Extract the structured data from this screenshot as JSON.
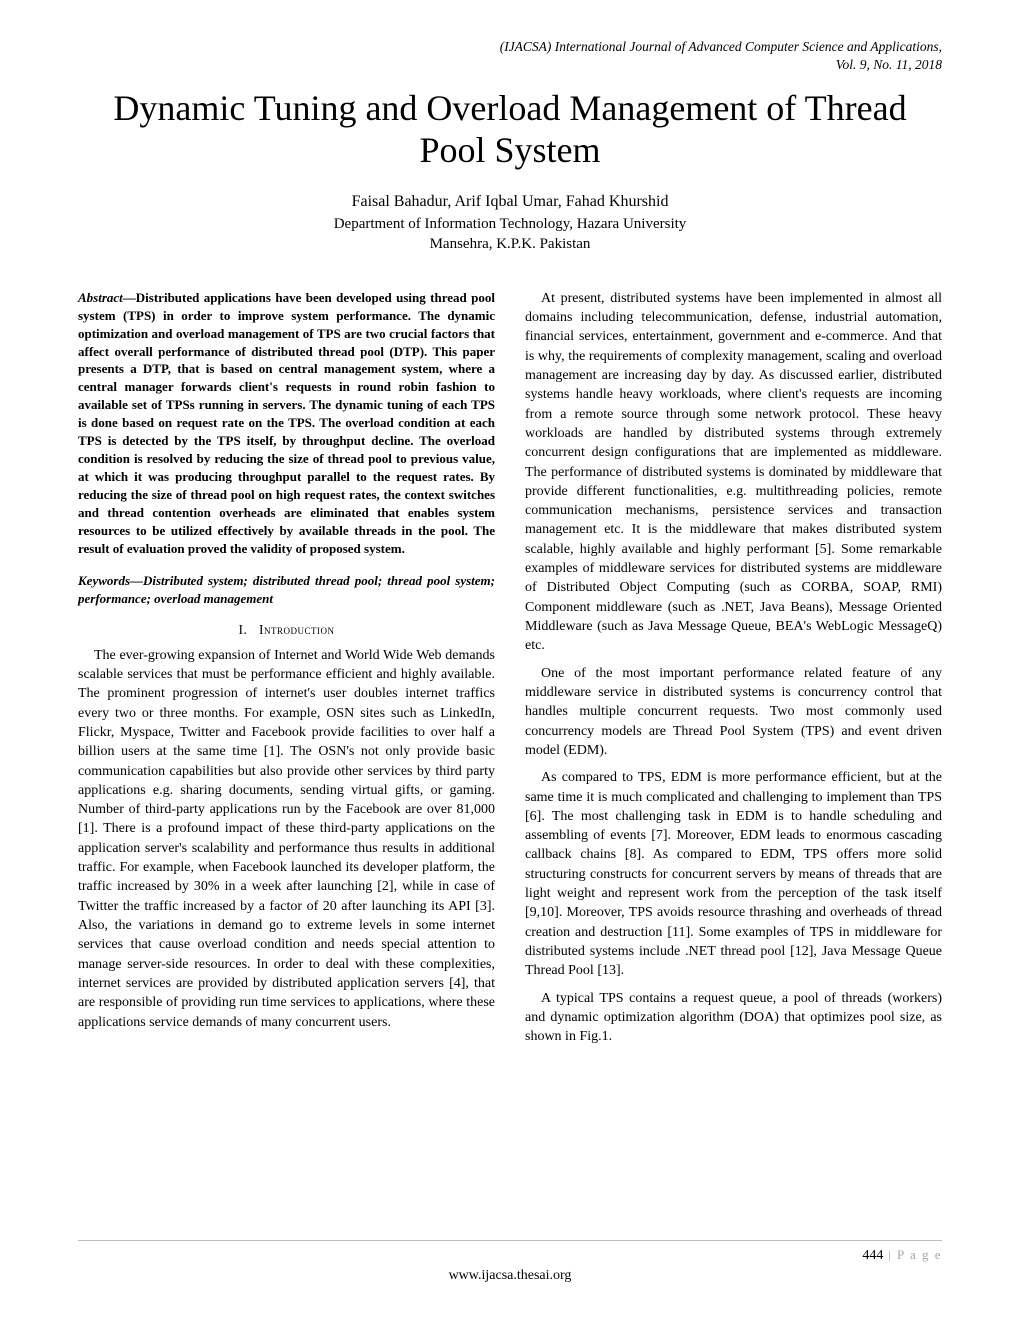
{
  "header": {
    "journal": "(IJACSA) International Journal of Advanced Computer Science and Applications,",
    "issue": "Vol. 9, No. 11, 2018"
  },
  "title": "Dynamic Tuning and Overload Management of Thread Pool System",
  "authors": "Faisal Bahadur, Arif Iqbal Umar, Fahad Khurshid",
  "affiliation_line1": "Department of Information Technology, Hazara University",
  "affiliation_line2": "Mansehra, K.P.K. Pakistan",
  "abstract_label": "Abstract",
  "abstract_text": "—Distributed applications have been developed using thread pool system (TPS) in order to improve system performance. The dynamic optimization and overload management of TPS are two crucial factors that affect overall performance of distributed thread pool (DTP). This paper presents a DTP, that is based on central management system, where a central manager forwards client's requests in round robin fashion to available set of TPSs running in servers. The dynamic tuning of each TPS is done based on request rate on the TPS. The overload condition at each TPS is detected by the TPS itself, by throughput decline. The overload condition is resolved by reducing the size of thread pool to previous value, at which it was producing throughput parallel to the request rates. By reducing the size of thread pool on high request rates, the context switches and thread contention overheads are eliminated that enables system resources to be utilized effectively by available threads in the pool. The result of evaluation proved the validity of proposed system.",
  "keywords": "Keywords—Distributed system; distributed thread pool; thread pool system; performance; overload management",
  "section1_num": "I.",
  "section1_name": "Introduction",
  "col_left": {
    "p1": "The ever-growing expansion of Internet and World Wide Web demands scalable services that must be performance efficient and highly available. The prominent progression of internet's user doubles internet traffics every two or three months. For example, OSN sites such as LinkedIn, Flickr, Myspace, Twitter and Facebook provide facilities to over half a billion users at the same time [1]. The OSN's not only provide basic communication capabilities but also provide other services by third party applications e.g. sharing documents, sending virtual gifts, or gaming.  Number of third-party applications run by the Facebook are over 81,000 [1]. There is a profound impact of these third-party applications on the application server's scalability and performance thus results in additional traffic. For example, when Facebook launched its developer platform, the traffic increased by 30% in a week after launching [2], while in case of Twitter the traffic increased by a factor of 20 after launching its API [3]. Also, the variations in demand go to extreme levels in some internet services that cause overload condition and needs special attention to manage server-side resources. In order to deal with these complexities, internet services are provided by distributed application servers [4], that are responsible of providing run time services to applications, where these applications service demands of many concurrent users."
  },
  "col_right": {
    "p1": "At present, distributed systems have been implemented in almost all domains including telecommunication, defense, industrial automation, financial services, entertainment, government and e-commerce. And that is why, the requirements of complexity management, scaling and overload management are increasing day by day. As discussed earlier, distributed systems handle heavy workloads, where client's requests are incoming from a remote source through some network protocol. These heavy workloads are handled by distributed systems through extremely concurrent design configurations that are implemented as middleware. The performance of distributed systems is dominated by middleware that provide different functionalities, e.g. multithreading policies, remote communication mechanisms, persistence services and transaction management etc. It is the middleware that makes distributed system scalable, highly available and highly performant [5]. Some remarkable examples of middleware services for distributed systems are middleware of Distributed Object Computing (such as CORBA, SOAP, RMI) Component middleware (such as .NET, Java Beans), Message Oriented Middleware (such as Java Message Queue, BEA's WebLogic MessageQ) etc.",
    "p2": "One of the most important performance related feature of any middleware service in distributed systems is concurrency control that handles multiple concurrent requests. Two most commonly used concurrency models are Thread Pool System (TPS) and event driven model (EDM).",
    "p3": "As compared to TPS, EDM is more performance efficient, but at the same time it is much complicated and challenging to implement than TPS [6]. The most challenging task in EDM is to handle scheduling and assembling of events [7]. Moreover, EDM leads to enormous cascading callback chains [8]. As compared to EDM, TPS offers more solid structuring constructs for concurrent servers by means of threads that are light weight and represent work from the perception of the task itself [9,10].  Moreover, TPS avoids resource thrashing and overheads of thread creation and destruction [11]. Some examples of TPS in middleware for distributed systems include .NET thread pool [12], Java Message Queue Thread Pool [13].",
    "p4": "A typical TPS contains a request queue, a pool of threads (workers) and dynamic optimization algorithm (DOA) that optimizes pool size, as shown in Fig.1."
  },
  "footer": {
    "page_num": "444",
    "page_label": " | P a g e",
    "url": "www.ijacsa.thesai.org"
  }
}
